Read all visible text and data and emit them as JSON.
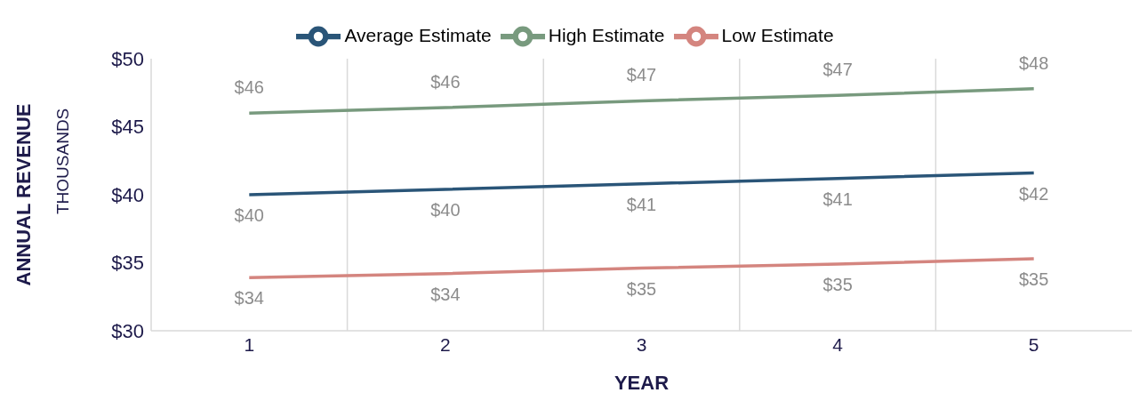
{
  "chart_data": {
    "type": "line",
    "xlabel": "YEAR",
    "ylabel": "ANNUAL REVENUE",
    "annotations": [
      "THOUSANDS"
    ],
    "categories": [
      "1",
      "2",
      "3",
      "4",
      "5"
    ],
    "series": [
      {
        "name": "Low Estimate",
        "color": "#d4857f",
        "values": [
          33.9,
          34.2,
          34.6,
          34.9,
          35.3
        ],
        "value_labels": [
          "$34",
          "$34",
          "$35",
          "$35",
          "$35"
        ]
      },
      {
        "name": "Average Estimate",
        "color": "#2a5578",
        "values": [
          40.0,
          40.4,
          40.8,
          41.2,
          41.6
        ],
        "value_labels": [
          "$40",
          "$40",
          "$41",
          "$41",
          "$42"
        ]
      },
      {
        "name": "High Estimate",
        "color": "#789a7e",
        "values": [
          46.0,
          46.4,
          46.9,
          47.3,
          47.8
        ],
        "value_labels": [
          "$46",
          "$46",
          "$47",
          "$47",
          "$48"
        ]
      }
    ],
    "ylim": [
      30,
      50
    ],
    "yticks": [
      {
        "value": 30,
        "label": "$30"
      },
      {
        "value": 35,
        "label": "$35"
      },
      {
        "value": 40,
        "label": "$40"
      },
      {
        "value": 45,
        "label": "$45"
      },
      {
        "value": 50,
        "label": "$50"
      }
    ],
    "grid": "x",
    "legend": "top",
    "marker": "none",
    "line_style": "solid"
  }
}
